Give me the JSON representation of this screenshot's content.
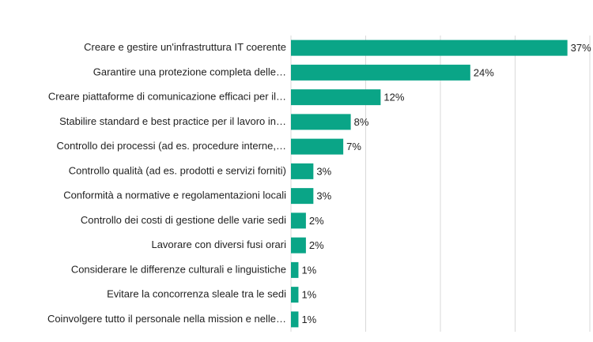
{
  "chart_data": {
    "type": "barh",
    "categories": [
      "Creare e gestire un'infrastruttura IT coerente",
      "Garantire una protezione completa delle…",
      "Creare piattaforme di comunicazione efficaci per il…",
      "Stabilire standard e best practice per il lavoro in…",
      "Controllo dei processi (ad es. procedure interne,…",
      "Controllo qualità (ad es. prodotti e servizi forniti)",
      "Conformità a normative e regolamentazioni locali",
      "Controllo dei costi di gestione delle varie sedi",
      "Lavorare con diversi fusi orari",
      "Considerare le differenze culturali e linguistiche",
      "Evitare la concorrenza sleale tra le sedi",
      "Coinvolgere tutto il personale nella mission e nelle…"
    ],
    "values": [
      37,
      24,
      12,
      8,
      7,
      3,
      3,
      2,
      2,
      1,
      1,
      1
    ],
    "value_labels": [
      "37%",
      "24%",
      "12%",
      "8%",
      "7%",
      "3%",
      "3%",
      "2%",
      "2%",
      "1%",
      "1%",
      "1%"
    ],
    "color": "#0aa587",
    "xlim": [
      0,
      40
    ],
    "xticks": [
      0,
      10,
      20,
      30,
      40
    ],
    "grid": true
  }
}
